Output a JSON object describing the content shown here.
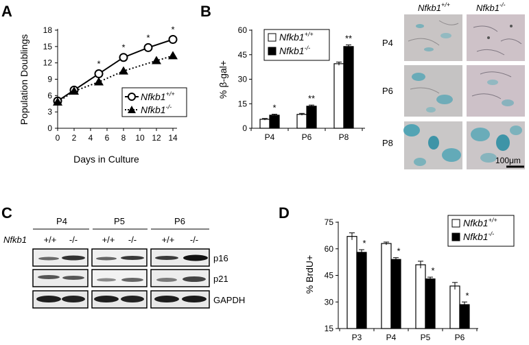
{
  "panel_labels": {
    "a": "A",
    "b": "B",
    "c": "C",
    "d": "D"
  },
  "colors": {
    "wt": "#ffffff",
    "ko": "#000000",
    "stain_bg": "#c9c3c4",
    "stain_blue": "#4aa3b4"
  },
  "chart_data": [
    {
      "id": "A",
      "type": "line",
      "xlabel": "Days in Culture",
      "ylabel": "Population Doublings",
      "xlim": [
        0,
        14
      ],
      "ylim": [
        0,
        18
      ],
      "xticks": [
        0,
        2,
        4,
        6,
        8,
        10,
        12,
        14
      ],
      "yticks": [
        0,
        3,
        6,
        9,
        12,
        15,
        18
      ],
      "legend": {
        "wt_base": "Nfkb1",
        "wt_sup": "+/+",
        "ko_base": "Nfkb1",
        "ko_sup": "-/-"
      },
      "series": [
        {
          "name": "Nfkb1+/+",
          "x": [
            0,
            2,
            5,
            8,
            11,
            14
          ],
          "y": [
            5.0,
            7.0,
            10.0,
            13.0,
            14.8,
            16.3
          ],
          "err": [
            0.3,
            0.3,
            0.4,
            0.5,
            0.5,
            0.5
          ]
        },
        {
          "name": "Nfkb1-/-",
          "x": [
            0,
            2,
            5,
            8,
            12,
            14
          ],
          "y": [
            4.8,
            6.8,
            8.5,
            10.5,
            12.4,
            13.3
          ],
          "err": [
            0.3,
            0.3,
            0.3,
            0.4,
            0.4,
            0.4
          ]
        }
      ],
      "stars": [
        {
          "x": 5,
          "text": "*"
        },
        {
          "x": 8,
          "text": "*"
        },
        {
          "x": 11,
          "text": "*"
        },
        {
          "x": 14,
          "text": "*"
        }
      ]
    },
    {
      "id": "B",
      "type": "bar",
      "ylabel": "% β-gal+",
      "ylim": [
        0,
        60
      ],
      "yticks": [
        0,
        15,
        30,
        45,
        60
      ],
      "categories": [
        "P4",
        "P6",
        "P8"
      ],
      "legend": {
        "wt_base": "Nfkb1",
        "wt_sup": "+/+",
        "ko_base": "Nfkb1",
        "ko_sup": "-/-"
      },
      "series": [
        {
          "name": "Nfkb1+/+",
          "values": [
            5.5,
            8.5,
            39.5
          ],
          "err": [
            0.5,
            0.6,
            1.0
          ]
        },
        {
          "name": "Nfkb1-/-",
          "values": [
            8.0,
            13.5,
            50.0
          ],
          "err": [
            0.6,
            0.7,
            1.0
          ]
        }
      ],
      "stars": [
        "*",
        "**",
        "**"
      ]
    },
    {
      "id": "D",
      "type": "bar",
      "ylabel": "% BrdU+",
      "ylim": [
        15,
        75
      ],
      "yticks": [
        15,
        30,
        45,
        60,
        75
      ],
      "categories": [
        "P3",
        "P4",
        "P5",
        "P6"
      ],
      "legend": {
        "wt_base": "Nfkb1",
        "wt_sup": "+/+",
        "ko_base": "Nfkb1",
        "ko_sup": "-/-"
      },
      "series": [
        {
          "name": "Nfkb1+/+",
          "values": [
            67.0,
            63.0,
            51.0,
            39.0
          ],
          "err": [
            2.0,
            0.8,
            2.0,
            2.0
          ]
        },
        {
          "name": "Nfkb1-/-",
          "values": [
            58.0,
            54.0,
            43.0,
            28.5
          ],
          "err": [
            1.5,
            1.0,
            1.0,
            1.5
          ]
        }
      ],
      "stars": [
        "*",
        "*",
        "*",
        "*"
      ]
    }
  ],
  "micrographs": {
    "col_headers": [
      {
        "base": "Nfkb1",
        "sup": "+/+"
      },
      {
        "base": "Nfkb1",
        "sup": "-/-"
      }
    ],
    "row_labels": [
      "P4",
      "P6",
      "P8"
    ],
    "scale_bar": "100μm"
  },
  "blot": {
    "groups": [
      "P4",
      "P5",
      "P6"
    ],
    "genotype_label": "Nfkb1",
    "lane_labels": [
      "+/+",
      "-/-",
      "+/+",
      "-/-",
      "+/+",
      "-/-"
    ],
    "proteins": [
      "p16",
      "p21",
      "GAPDH"
    ]
  }
}
